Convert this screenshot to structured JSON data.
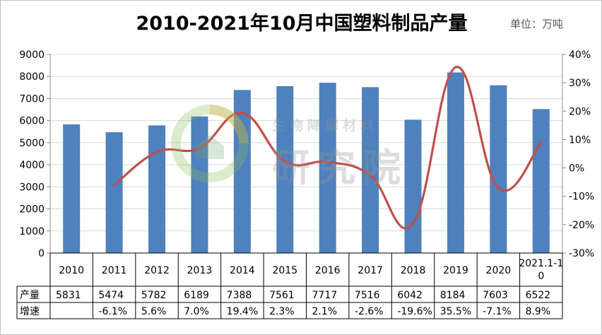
{
  "header": {
    "title": "2010-2021年10月中国塑料制品产量",
    "unit": "单位：万吨"
  },
  "watermark": {
    "line1": "生物降解材料",
    "line2": "研究院",
    "logo_icon": "leaf-logo-icon"
  },
  "colors": {
    "bar": "#4e81bd",
    "line": "#c0504d",
    "grid": "#d9d9d9",
    "axis": "#8c8c8c",
    "text": "#000000"
  },
  "chart_data": {
    "type": "bar",
    "title": "2010-2021年10月中国塑料制品产量",
    "unit": "单位：万吨",
    "categories": [
      "2010",
      "2011",
      "2012",
      "2013",
      "2014",
      "2015",
      "2016",
      "2017",
      "2018",
      "2019",
      "2020",
      "2021.1-10"
    ],
    "category_labels": [
      [
        "2010"
      ],
      [
        "2011"
      ],
      [
        "2012"
      ],
      [
        "2013"
      ],
      [
        "2014"
      ],
      [
        "2015"
      ],
      [
        "2016"
      ],
      [
        "2017"
      ],
      [
        "2018"
      ],
      [
        "2019"
      ],
      [
        "2020"
      ],
      [
        "2021.1-1",
        "0"
      ]
    ],
    "series": [
      {
        "name": "产量",
        "type": "bar",
        "axis": "left",
        "values": [
          5831,
          5474,
          5782,
          6189,
          7388,
          7561,
          7717,
          7516,
          6042,
          8184,
          7603,
          6522
        ]
      },
      {
        "name": "增速",
        "type": "line",
        "axis": "right",
        "values": [
          null,
          -6.1,
          5.6,
          7.0,
          19.4,
          2.3,
          2.1,
          -2.6,
          -19.6,
          35.5,
          -7.1,
          8.9
        ]
      }
    ],
    "table_rows": [
      {
        "label": "产量",
        "cells": [
          "5831",
          "5474",
          "5782",
          "6189",
          "7388",
          "7561",
          "7717",
          "7516",
          "6042",
          "8184",
          "7603",
          "6522"
        ]
      },
      {
        "label": "增速",
        "cells": [
          "",
          "-6.1%",
          "5.6%",
          "7.0%",
          "19.4%",
          "2.3%",
          "2.1%",
          "-2.6%",
          "-19.6%",
          "35.5%",
          "-7.1%",
          "8.9%"
        ]
      }
    ],
    "ylim_left": [
      0,
      9000
    ],
    "yticks_left": [
      "0",
      "1000",
      "2000",
      "3000",
      "4000",
      "5000",
      "6000",
      "7000",
      "8000",
      "9000"
    ],
    "ylim_right": [
      -30,
      40
    ],
    "yticks_right": [
      "-30%",
      "-20%",
      "-10%",
      "0%",
      "10%",
      "20%",
      "30%",
      "40%"
    ],
    "grid": true,
    "legend": "data-table"
  }
}
